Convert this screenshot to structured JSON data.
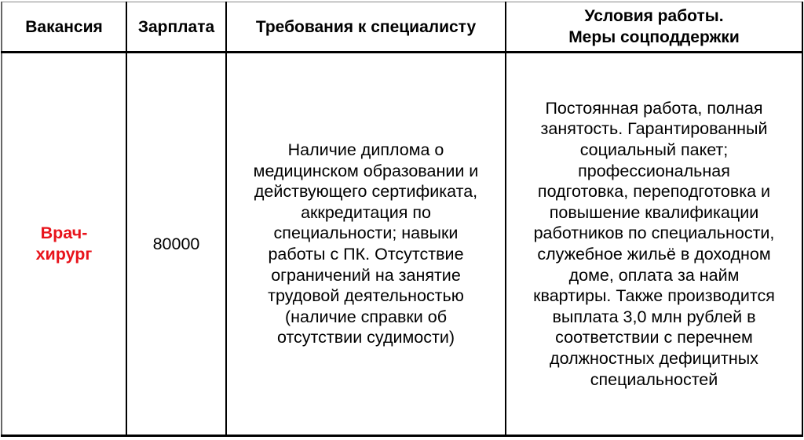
{
  "table": {
    "headers": [
      "Вакансия",
      "Зарплата",
      "Требования к специалисту",
      "Условия работы.\nМеры соцподдержки"
    ],
    "rows": [
      {
        "vacancy": "Врач-\nхирург",
        "salary": "80000",
        "requirements": "Наличие диплома о\nмедицинском образовании и\nдействующего сертификата,\nаккредитация по\nспециальности; навыки\nработы с ПК. Отсутствие\nограничений на занятие\nтрудовой деятельностью\n(наличие справки об\nотсутствии судимости)",
        "conditions": "Постоянная работа, полная\nзанятость. Гарантированный\nсоциальный пакет;\nпрофессиональная\nподготовка, переподготовка и\nповышение квалификации\nработников по специальности,\nслужебное жильё в доходном\nдоме, оплата за найм\nквартиры. Также производится\nвыплата 3,0 млн рублей в\nсоответствии с перечнем\nдолжностных дефицитных\nспециальностей"
      }
    ],
    "vacancy_color": "#e8131b"
  }
}
